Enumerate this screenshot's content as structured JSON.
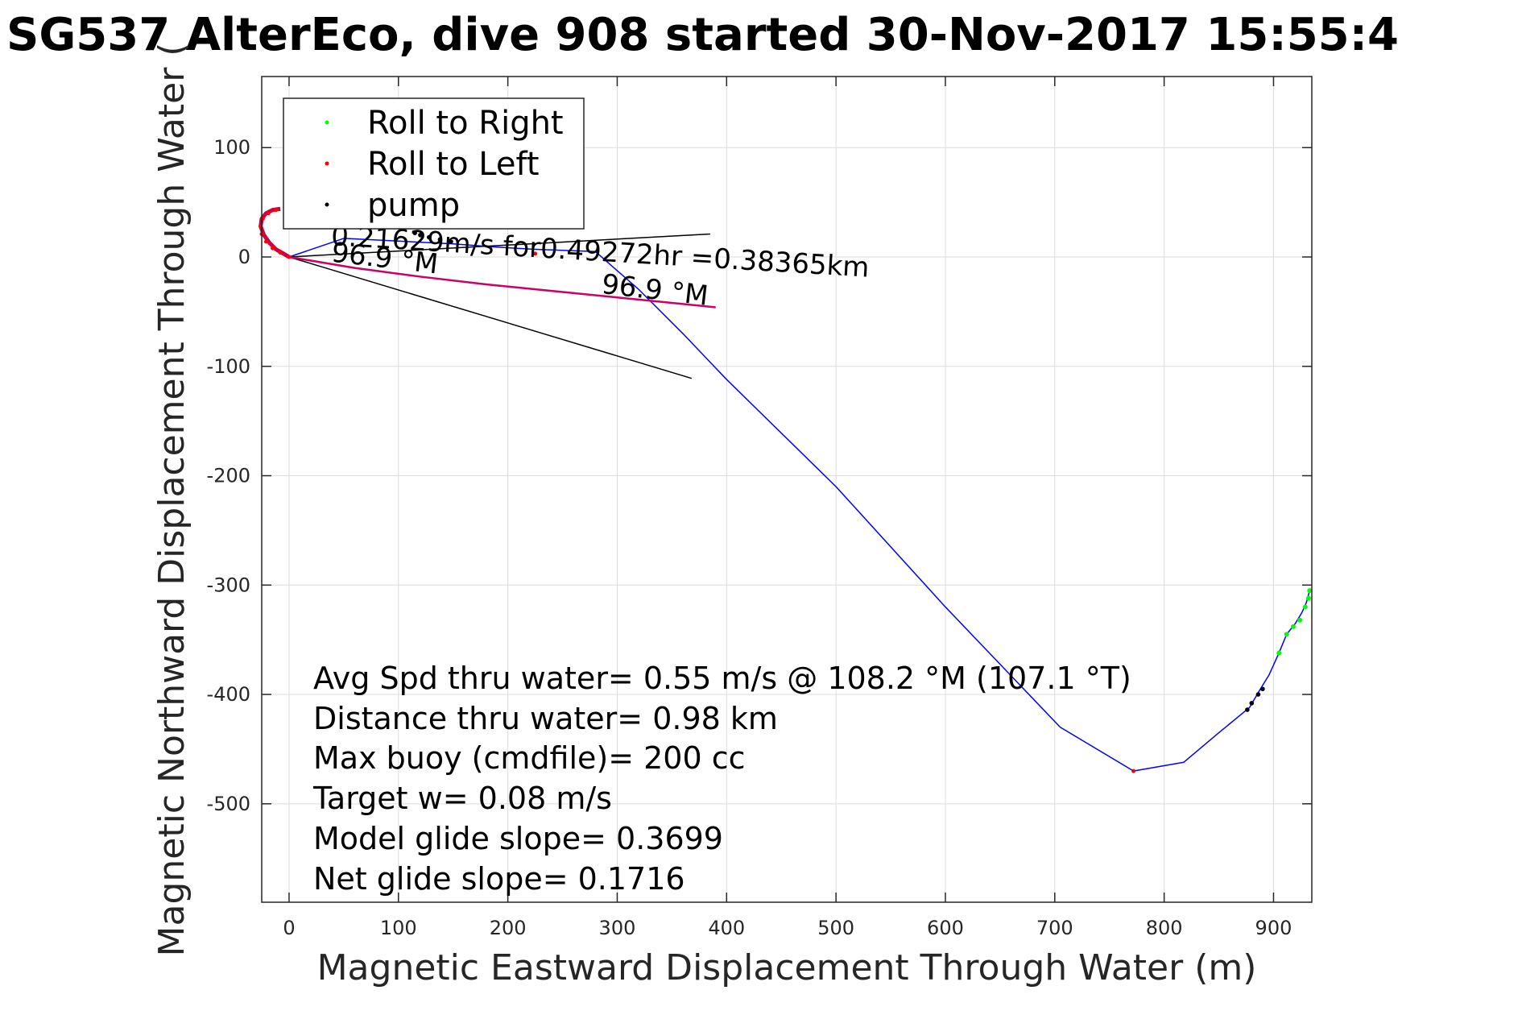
{
  "chart_data": {
    "type": "line",
    "title": "SG537 AlterEco, dive 908 started 30-Nov-2017 15:55:4",
    "xlabel": "Magnetic Eastward Displacement Through Water (m)",
    "ylabel": "Magnetic Northward Displacement Through Water (",
    "xlim": [
      -25,
      935
    ],
    "ylim": [
      -590,
      165
    ],
    "xticks": [
      0,
      100,
      200,
      300,
      400,
      500,
      600,
      700,
      800,
      900
    ],
    "yticks": [
      100,
      0,
      -100,
      -200,
      -300,
      -400,
      -500
    ],
    "grid": true,
    "legend_position": "top-left",
    "legend": [
      {
        "label": "Roll to Right",
        "color": "#00ff00"
      },
      {
        "label": "Roll to Left",
        "color": "#ff0000"
      },
      {
        "label": "pump",
        "color": "#000000"
      }
    ],
    "track": {
      "name": "track",
      "color": "#0000ff",
      "x": [
        0,
        50,
        150,
        190,
        225,
        280,
        320,
        360,
        400,
        500,
        600,
        705,
        772,
        818,
        850,
        878,
        888,
        896,
        905,
        912,
        920,
        926,
        930,
        933
      ],
      "y": [
        0,
        17,
        12,
        9,
        7,
        5,
        -30,
        -70,
        -112,
        -210,
        -320,
        -430,
        -470,
        -462,
        -435,
        -412,
        -395,
        -382,
        -362,
        -345,
        -335,
        -325,
        -316,
        -305
      ]
    },
    "loop": {
      "color": "#cc0044",
      "x": [
        0,
        -5,
        -12,
        -18,
        -23,
        -26,
        -25,
        -21,
        -15,
        -8
      ],
      "y": [
        0,
        3,
        7,
        13,
        20,
        28,
        35,
        40,
        43,
        44
      ]
    },
    "roll_left_segment": {
      "color": "#cc0066",
      "x": [
        0,
        60,
        120,
        180,
        240,
        300,
        350,
        390
      ],
      "y": [
        0,
        -10,
        -18,
        -25,
        -31,
        -37,
        -42,
        -46
      ]
    },
    "roll_left_points": {
      "x": [
        0,
        -8,
        -15,
        -21,
        -25,
        -26,
        -24,
        -19,
        -12,
        225,
        772
      ],
      "y": [
        0,
        4,
        8,
        14,
        21,
        28,
        35,
        40,
        43,
        3,
        -470
      ]
    },
    "roll_right_points": {
      "x": [
        905,
        912,
        918,
        924,
        929,
        932,
        933
      ],
      "y": [
        -362,
        -345,
        -338,
        -332,
        -320,
        -312,
        -305
      ]
    },
    "pump_points": {
      "x": [
        115,
        120,
        128,
        138,
        148,
        876,
        880,
        886,
        890
      ],
      "y": [
        22,
        20,
        18,
        16,
        14,
        -414,
        -408,
        -400,
        -395
      ]
    },
    "reference_lines": [
      {
        "x": [
          0,
          385
        ],
        "y": [
          0,
          21
        ]
      },
      {
        "x": [
          0,
          368
        ],
        "y": [
          0,
          -111
        ]
      }
    ],
    "annotations": [
      {
        "text": "0.21629m/s for0.49272hr =0.38365km",
        "x": 38,
        "y": 11,
        "rotate": 3.4
      },
      {
        "text": "96.9 °M",
        "x": 38,
        "y": -4,
        "rotate": 6.5
      },
      {
        "text": "96.9 °M",
        "x": 285,
        "y": -33,
        "rotate": 6.5
      }
    ],
    "stats": [
      "Avg Spd thru water=  0.55 m/s @ 108.2 °M (107.1 °T)",
      "Distance thru water=  0.98 km",
      "Max buoy (cmdfile)= 200 cc",
      "Target w= 0.08 m/s",
      "Model glide slope= 0.3699",
      "Net glide slope= 0.1716"
    ]
  }
}
